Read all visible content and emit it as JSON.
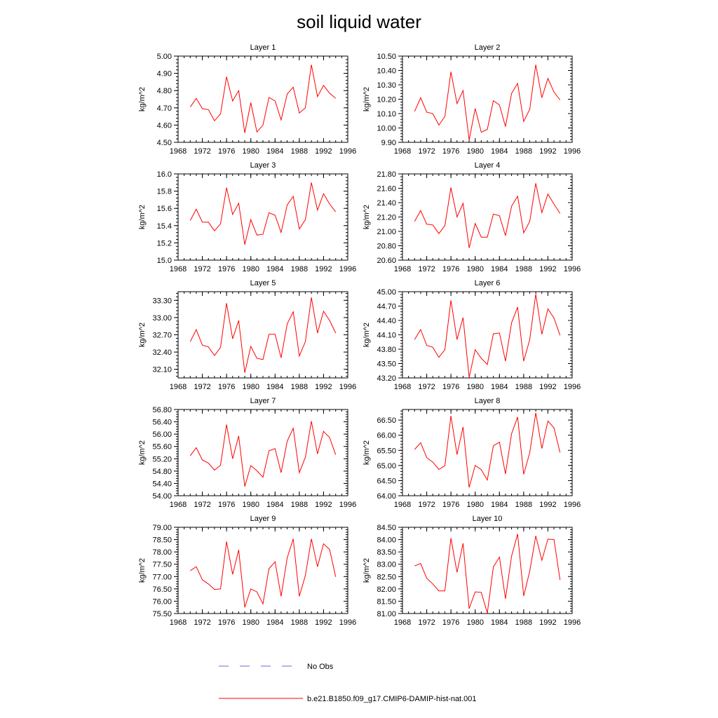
{
  "title": "soil liquid water",
  "legend": {
    "placement": "bottom",
    "entries": [
      {
        "label": "No Obs",
        "color": "#6a6ad6",
        "style": "dashed"
      },
      {
        "label": "b.e21.B1850.f09_g17.CMIP6-DAMIP-hist-nat.001",
        "color": "#ff0000",
        "style": "solid"
      }
    ]
  },
  "chart_data": [
    {
      "type": "line",
      "title": "Layer 1",
      "ylabel": "kg/m^2",
      "xlim": [
        1968,
        1996
      ],
      "ylim": [
        4.5,
        5.0
      ],
      "xticks": [
        "1968",
        "1972",
        "1976",
        "1980",
        "1984",
        "1988",
        "1992",
        "1996"
      ],
      "yticks": [
        "4.50",
        "4.60",
        "4.70",
        "4.80",
        "4.90",
        "5.00"
      ],
      "x": [
        1970,
        1971,
        1972,
        1973,
        1974,
        1975,
        1976,
        1977,
        1978,
        1979,
        1980,
        1981,
        1982,
        1983,
        1984,
        1985,
        1986,
        1987,
        1988,
        1989,
        1990,
        1991,
        1992,
        1993,
        1994
      ],
      "series": [
        {
          "name": "b.e21.B1850.f09_g17.CMIP6-DAMIP-hist-nat.001",
          "color": "#ff0000",
          "values": [
            4.705,
            4.755,
            4.695,
            4.69,
            4.625,
            4.665,
            4.88,
            4.74,
            4.8,
            4.555,
            4.73,
            4.56,
            4.6,
            4.76,
            4.74,
            4.63,
            4.78,
            4.82,
            4.67,
            4.7,
            4.95,
            4.765,
            4.83,
            4.785,
            4.755
          ]
        }
      ]
    },
    {
      "type": "line",
      "title": "Layer 2",
      "ylabel": "kg/m^2",
      "xlim": [
        1968,
        1996
      ],
      "ylim": [
        9.9,
        10.5
      ],
      "xticks": [
        "1968",
        "1972",
        "1976",
        "1980",
        "1984",
        "1988",
        "1992",
        "1996"
      ],
      "yticks": [
        "9.90",
        "10.00",
        "10.10",
        "10.20",
        "10.30",
        "10.40",
        "10.50"
      ],
      "x": [
        1970,
        1971,
        1972,
        1973,
        1974,
        1975,
        1976,
        1977,
        1978,
        1979,
        1980,
        1981,
        1982,
        1983,
        1984,
        1985,
        1986,
        1987,
        1988,
        1989,
        1990,
        1991,
        1992,
        1993,
        1994
      ],
      "series": [
        {
          "name": "b.e21.B1850.f09_g17.CMIP6-DAMIP-hist-nat.001",
          "color": "#ff0000",
          "values": [
            10.115,
            10.21,
            10.11,
            10.1,
            10.02,
            10.08,
            10.39,
            10.17,
            10.26,
            9.915,
            10.135,
            9.97,
            9.99,
            10.19,
            10.16,
            10.01,
            10.24,
            10.31,
            10.045,
            10.13,
            10.44,
            10.21,
            10.345,
            10.25,
            10.195
          ]
        }
      ]
    },
    {
      "type": "line",
      "title": "Layer 3",
      "ylabel": "kg/m^2",
      "xlim": [
        1968,
        1996
      ],
      "ylim": [
        15.0,
        16.0
      ],
      "xticks": [
        "1968",
        "1972",
        "1976",
        "1980",
        "1984",
        "1988",
        "1992",
        "1996"
      ],
      "yticks": [
        "15.0",
        "15.2",
        "15.4",
        "15.6",
        "15.8",
        "16.0"
      ],
      "x": [
        1970,
        1971,
        1972,
        1973,
        1974,
        1975,
        1976,
        1977,
        1978,
        1979,
        1980,
        1981,
        1982,
        1983,
        1984,
        1985,
        1986,
        1987,
        1988,
        1989,
        1990,
        1991,
        1992,
        1993,
        1994
      ],
      "series": [
        {
          "name": "b.e21.B1850.f09_g17.CMIP6-DAMIP-hist-nat.001",
          "color": "#ff0000",
          "values": [
            15.46,
            15.59,
            15.44,
            15.44,
            15.34,
            15.42,
            15.84,
            15.53,
            15.66,
            15.18,
            15.47,
            15.29,
            15.3,
            15.55,
            15.52,
            15.32,
            15.64,
            15.74,
            15.36,
            15.47,
            15.9,
            15.58,
            15.77,
            15.65,
            15.56
          ]
        }
      ]
    },
    {
      "type": "line",
      "title": "Layer 4",
      "ylabel": "kg/m^2",
      "xlim": [
        1968,
        1996
      ],
      "ylim": [
        20.6,
        21.8
      ],
      "xticks": [
        "1968",
        "1972",
        "1976",
        "1980",
        "1984",
        "1988",
        "1992",
        "1996"
      ],
      "yticks": [
        "20.60",
        "20.80",
        "21.00",
        "21.20",
        "21.40",
        "21.60",
        "21.80"
      ],
      "x": [
        1970,
        1971,
        1972,
        1973,
        1974,
        1975,
        1976,
        1977,
        1978,
        1979,
        1980,
        1981,
        1982,
        1983,
        1984,
        1985,
        1986,
        1987,
        1988,
        1989,
        1990,
        1991,
        1992,
        1993,
        1994
      ],
      "series": [
        {
          "name": "b.e21.B1850.f09_g17.CMIP6-DAMIP-hist-nat.001",
          "color": "#ff0000",
          "values": [
            21.14,
            21.29,
            21.1,
            21.09,
            20.97,
            21.08,
            21.61,
            21.2,
            21.39,
            20.77,
            21.11,
            20.92,
            20.92,
            21.24,
            21.22,
            20.94,
            21.35,
            21.49,
            20.98,
            21.14,
            21.67,
            21.26,
            21.52,
            21.38,
            21.25
          ]
        }
      ]
    },
    {
      "type": "line",
      "title": "Layer 5",
      "ylabel": "kg/m^2",
      "xlim": [
        1968,
        1996
      ],
      "ylim": [
        31.95,
        33.45
      ],
      "xticks": [
        "1968",
        "1972",
        "1976",
        "1980",
        "1984",
        "1988",
        "1992",
        "1996"
      ],
      "yticks": [
        "32.10",
        "32.40",
        "32.70",
        "33.00",
        "33.30"
      ],
      "x": [
        1970,
        1971,
        1972,
        1973,
        1974,
        1975,
        1976,
        1977,
        1978,
        1979,
        1980,
        1981,
        1982,
        1983,
        1984,
        1985,
        1986,
        1987,
        1988,
        1989,
        1990,
        1991,
        1992,
        1993,
        1994
      ],
      "series": [
        {
          "name": "b.e21.B1850.f09_g17.CMIP6-DAMIP-hist-nat.001",
          "color": "#ff0000",
          "values": [
            32.58,
            32.79,
            32.52,
            32.49,
            32.34,
            32.48,
            33.25,
            32.63,
            32.95,
            32.04,
            32.5,
            32.29,
            32.27,
            32.71,
            32.71,
            32.3,
            32.89,
            33.1,
            32.33,
            32.58,
            33.35,
            32.73,
            33.11,
            32.95,
            32.73
          ]
        }
      ]
    },
    {
      "type": "line",
      "title": "Layer 6",
      "ylabel": "kg/m^2",
      "xlim": [
        1968,
        1996
      ],
      "ylim": [
        43.2,
        45.0
      ],
      "xticks": [
        "1968",
        "1972",
        "1976",
        "1980",
        "1984",
        "1988",
        "1992",
        "1996"
      ],
      "yticks": [
        "43.20",
        "43.50",
        "43.80",
        "44.10",
        "44.40",
        "44.70",
        "45.00"
      ],
      "x": [
        1970,
        1971,
        1972,
        1973,
        1974,
        1975,
        1976,
        1977,
        1978,
        1979,
        1980,
        1981,
        1982,
        1983,
        1984,
        1985,
        1986,
        1987,
        1988,
        1989,
        1990,
        1991,
        1992,
        1993,
        1994
      ],
      "series": [
        {
          "name": "b.e21.B1850.f09_g17.CMIP6-DAMIP-hist-nat.001",
          "color": "#ff0000",
          "values": [
            44.0,
            44.21,
            43.88,
            43.84,
            43.63,
            43.79,
            44.82,
            44.0,
            44.46,
            43.21,
            43.79,
            43.61,
            43.48,
            44.12,
            44.14,
            43.55,
            44.35,
            44.68,
            43.55,
            44.0,
            44.95,
            44.11,
            44.64,
            44.45,
            44.09
          ]
        }
      ]
    },
    {
      "type": "line",
      "title": "Layer 7",
      "ylabel": "kg/m^2",
      "xlim": [
        1968,
        1996
      ],
      "ylim": [
        54.0,
        56.8
      ],
      "xticks": [
        "1968",
        "1972",
        "1976",
        "1980",
        "1984",
        "1988",
        "1992",
        "1996"
      ],
      "yticks": [
        "54.00",
        "54.40",
        "54.80",
        "55.20",
        "55.60",
        "56.00",
        "56.40",
        "56.80"
      ],
      "x": [
        1970,
        1971,
        1972,
        1973,
        1974,
        1975,
        1976,
        1977,
        1978,
        1979,
        1980,
        1981,
        1982,
        1983,
        1984,
        1985,
        1986,
        1987,
        1988,
        1989,
        1990,
        1991,
        1992,
        1993,
        1994
      ],
      "series": [
        {
          "name": "b.e21.B1850.f09_g17.CMIP6-DAMIP-hist-nat.001",
          "color": "#ff0000",
          "values": [
            55.3,
            55.56,
            55.16,
            55.06,
            54.83,
            54.99,
            56.31,
            55.2,
            55.94,
            54.3,
            54.98,
            54.81,
            54.6,
            55.46,
            55.53,
            54.75,
            55.77,
            56.19,
            54.75,
            55.25,
            56.42,
            55.36,
            56.09,
            55.89,
            55.33
          ]
        }
      ]
    },
    {
      "type": "line",
      "title": "Layer 8",
      "ylabel": "kg/m^2",
      "xlim": [
        1968,
        1996
      ],
      "ylim": [
        64.0,
        66.85
      ],
      "xticks": [
        "1968",
        "1972",
        "1976",
        "1980",
        "1984",
        "1988",
        "1992",
        "1996"
      ],
      "yticks": [
        "64.00",
        "64.50",
        "65.00",
        "65.50",
        "66.00",
        "66.50"
      ],
      "x": [
        1970,
        1971,
        1972,
        1973,
        1974,
        1975,
        1976,
        1977,
        1978,
        1979,
        1980,
        1981,
        1982,
        1983,
        1984,
        1985,
        1986,
        1987,
        1988,
        1989,
        1990,
        1991,
        1992,
        1993,
        1994
      ],
      "series": [
        {
          "name": "b.e21.B1850.f09_g17.CMIP6-DAMIP-hist-nat.001",
          "color": "#ff0000",
          "values": [
            65.53,
            65.75,
            65.26,
            65.11,
            64.87,
            64.99,
            66.64,
            65.36,
            66.27,
            64.27,
            65.0,
            64.86,
            64.52,
            65.65,
            65.77,
            64.72,
            66.05,
            66.6,
            64.71,
            65.42,
            66.74,
            65.56,
            66.47,
            66.24,
            65.43
          ]
        }
      ]
    },
    {
      "type": "line",
      "title": "Layer 9",
      "ylabel": "kg/m^2",
      "xlim": [
        1968,
        1996
      ],
      "ylim": [
        75.5,
        79.0
      ],
      "xticks": [
        "1968",
        "1972",
        "1976",
        "1980",
        "1984",
        "1988",
        "1992",
        "1996"
      ],
      "yticks": [
        "75.50",
        "76.00",
        "76.50",
        "77.00",
        "77.50",
        "78.00",
        "78.50",
        "79.00"
      ],
      "x": [
        1970,
        1971,
        1972,
        1973,
        1974,
        1975,
        1976,
        1977,
        1978,
        1979,
        1980,
        1981,
        1982,
        1983,
        1984,
        1985,
        1986,
        1987,
        1988,
        1989,
        1990,
        1991,
        1992,
        1993,
        1994
      ],
      "series": [
        {
          "name": "b.e21.B1850.f09_g17.CMIP6-DAMIP-hist-nat.001",
          "color": "#ff0000",
          "values": [
            77.24,
            77.4,
            76.87,
            76.7,
            76.48,
            76.5,
            78.42,
            77.09,
            78.08,
            75.75,
            76.5,
            76.38,
            75.89,
            77.32,
            77.6,
            76.2,
            77.76,
            78.53,
            76.2,
            77.04,
            78.53,
            77.4,
            78.33,
            78.1,
            76.99
          ]
        }
      ]
    },
    {
      "type": "line",
      "title": "Layer 10",
      "ylabel": "kg/m^2",
      "xlim": [
        1968,
        1996
      ],
      "ylim": [
        81.0,
        84.5
      ],
      "xticks": [
        "1968",
        "1972",
        "1976",
        "1980",
        "1984",
        "1988",
        "1992",
        "1996"
      ],
      "yticks": [
        "81.00",
        "81.50",
        "82.00",
        "82.50",
        "83.00",
        "83.50",
        "84.00",
        "84.50"
      ],
      "x": [
        1970,
        1971,
        1972,
        1973,
        1974,
        1975,
        1976,
        1977,
        1978,
        1979,
        1980,
        1981,
        1982,
        1983,
        1984,
        1985,
        1986,
        1987,
        1988,
        1989,
        1990,
        1991,
        1992,
        1993,
        1994
      ],
      "series": [
        {
          "name": "b.e21.B1850.f09_g17.CMIP6-DAMIP-hist-nat.001",
          "color": "#ff0000",
          "values": [
            82.93,
            83.03,
            82.43,
            82.2,
            81.92,
            81.92,
            84.06,
            82.67,
            83.85,
            81.2,
            81.88,
            81.86,
            81.02,
            82.89,
            83.29,
            81.6,
            83.33,
            84.23,
            81.71,
            82.72,
            84.15,
            83.16,
            84.02,
            84.0,
            82.37
          ]
        }
      ]
    }
  ]
}
